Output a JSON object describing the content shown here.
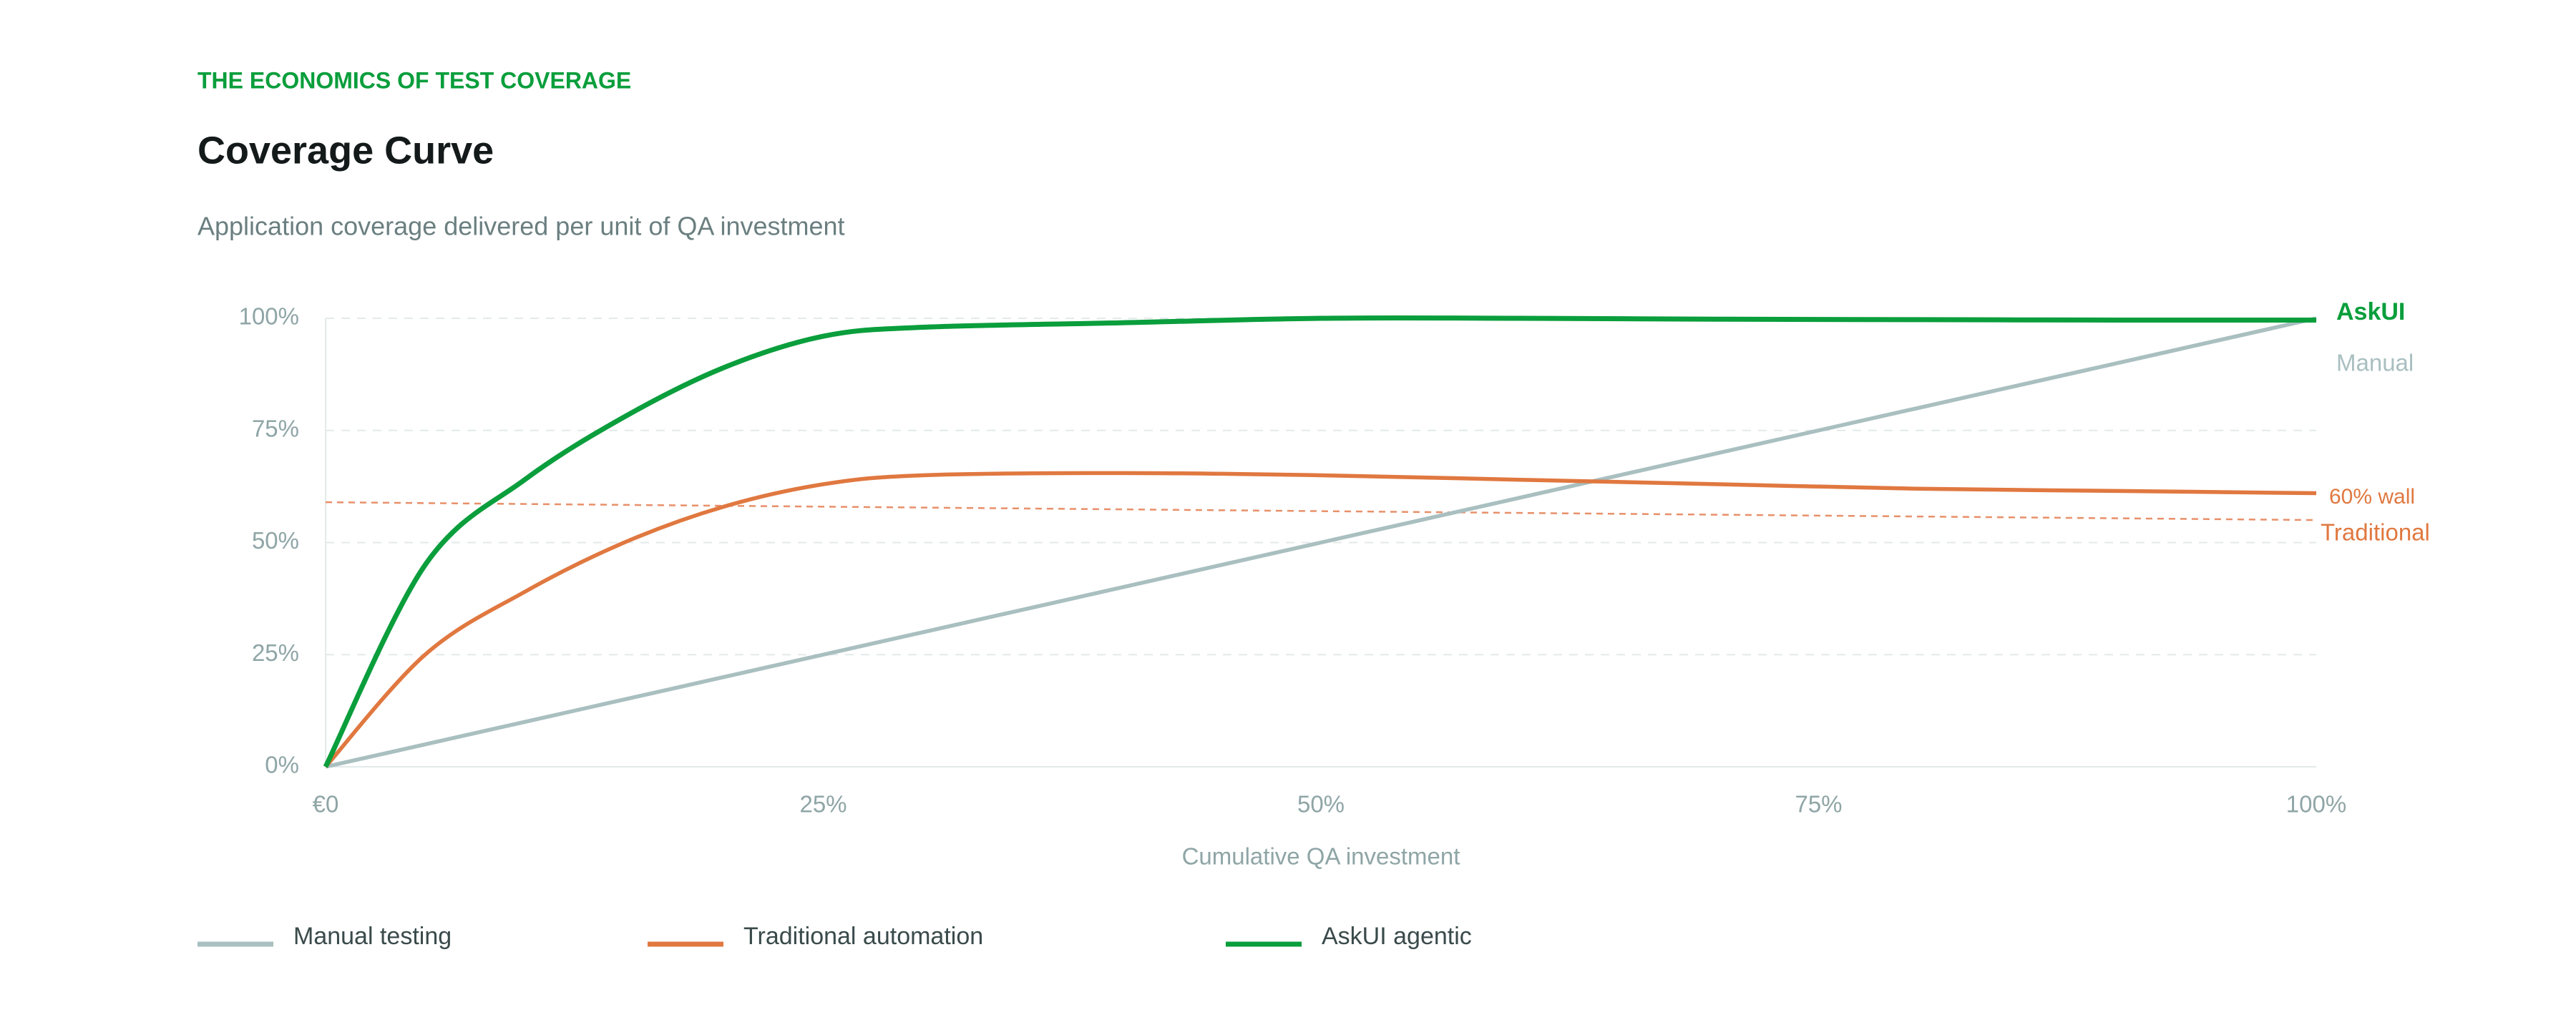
{
  "chart_data": {
    "type": "line",
    "eyebrow": "THE ECONOMICS OF TEST COVERAGE",
    "title": "Coverage Curve",
    "subtitle": "Application coverage delivered per unit of QA investment",
    "x_label": "Cumulative QA investment",
    "x": [
      0,
      5,
      10,
      15,
      20,
      25,
      30,
      40,
      50,
      60,
      70,
      80,
      90,
      100
    ],
    "series": [
      {
        "name": "Manual testing",
        "end_label": "Manual",
        "color": "#a9bfc0",
        "values": [
          0,
          5,
          10,
          15,
          20,
          25,
          30,
          40,
          50,
          60,
          70,
          80,
          90,
          100
        ]
      },
      {
        "name": "Traditional automation",
        "end_label": "Traditional",
        "color": "#e07840",
        "values": [
          0,
          25,
          39,
          50,
          58,
          63,
          65,
          65.5,
          65,
          64,
          63,
          62,
          61.5,
          61
        ]
      },
      {
        "name": "AskUI agentic",
        "end_label": "AskUI",
        "color": "#0a9e3c",
        "values": [
          0,
          45,
          64,
          78,
          89,
          96,
          98,
          99,
          100,
          100,
          99.8,
          99.7,
          99.6,
          99.6
        ]
      }
    ],
    "reference_line": {
      "label": "60% wall",
      "color": "#e8906a",
      "x": [
        0,
        100
      ],
      "values": [
        59,
        55
      ]
    },
    "xlim": [
      0,
      100
    ],
    "xticks": [
      {
        "value": 0,
        "label": "€0"
      },
      {
        "value": 25,
        "label": "25%"
      },
      {
        "value": 50,
        "label": "50%"
      },
      {
        "value": 75,
        "label": "75%"
      },
      {
        "value": 100,
        "label": "100%"
      }
    ],
    "ylim": [
      0,
      100
    ],
    "yticks": [
      {
        "value": 0,
        "label": "0%"
      },
      {
        "value": 25,
        "label": "25%"
      },
      {
        "value": 50,
        "label": "50%"
      },
      {
        "value": 75,
        "label": "75%"
      },
      {
        "value": 100,
        "label": "100%"
      }
    ],
    "grid": true
  }
}
